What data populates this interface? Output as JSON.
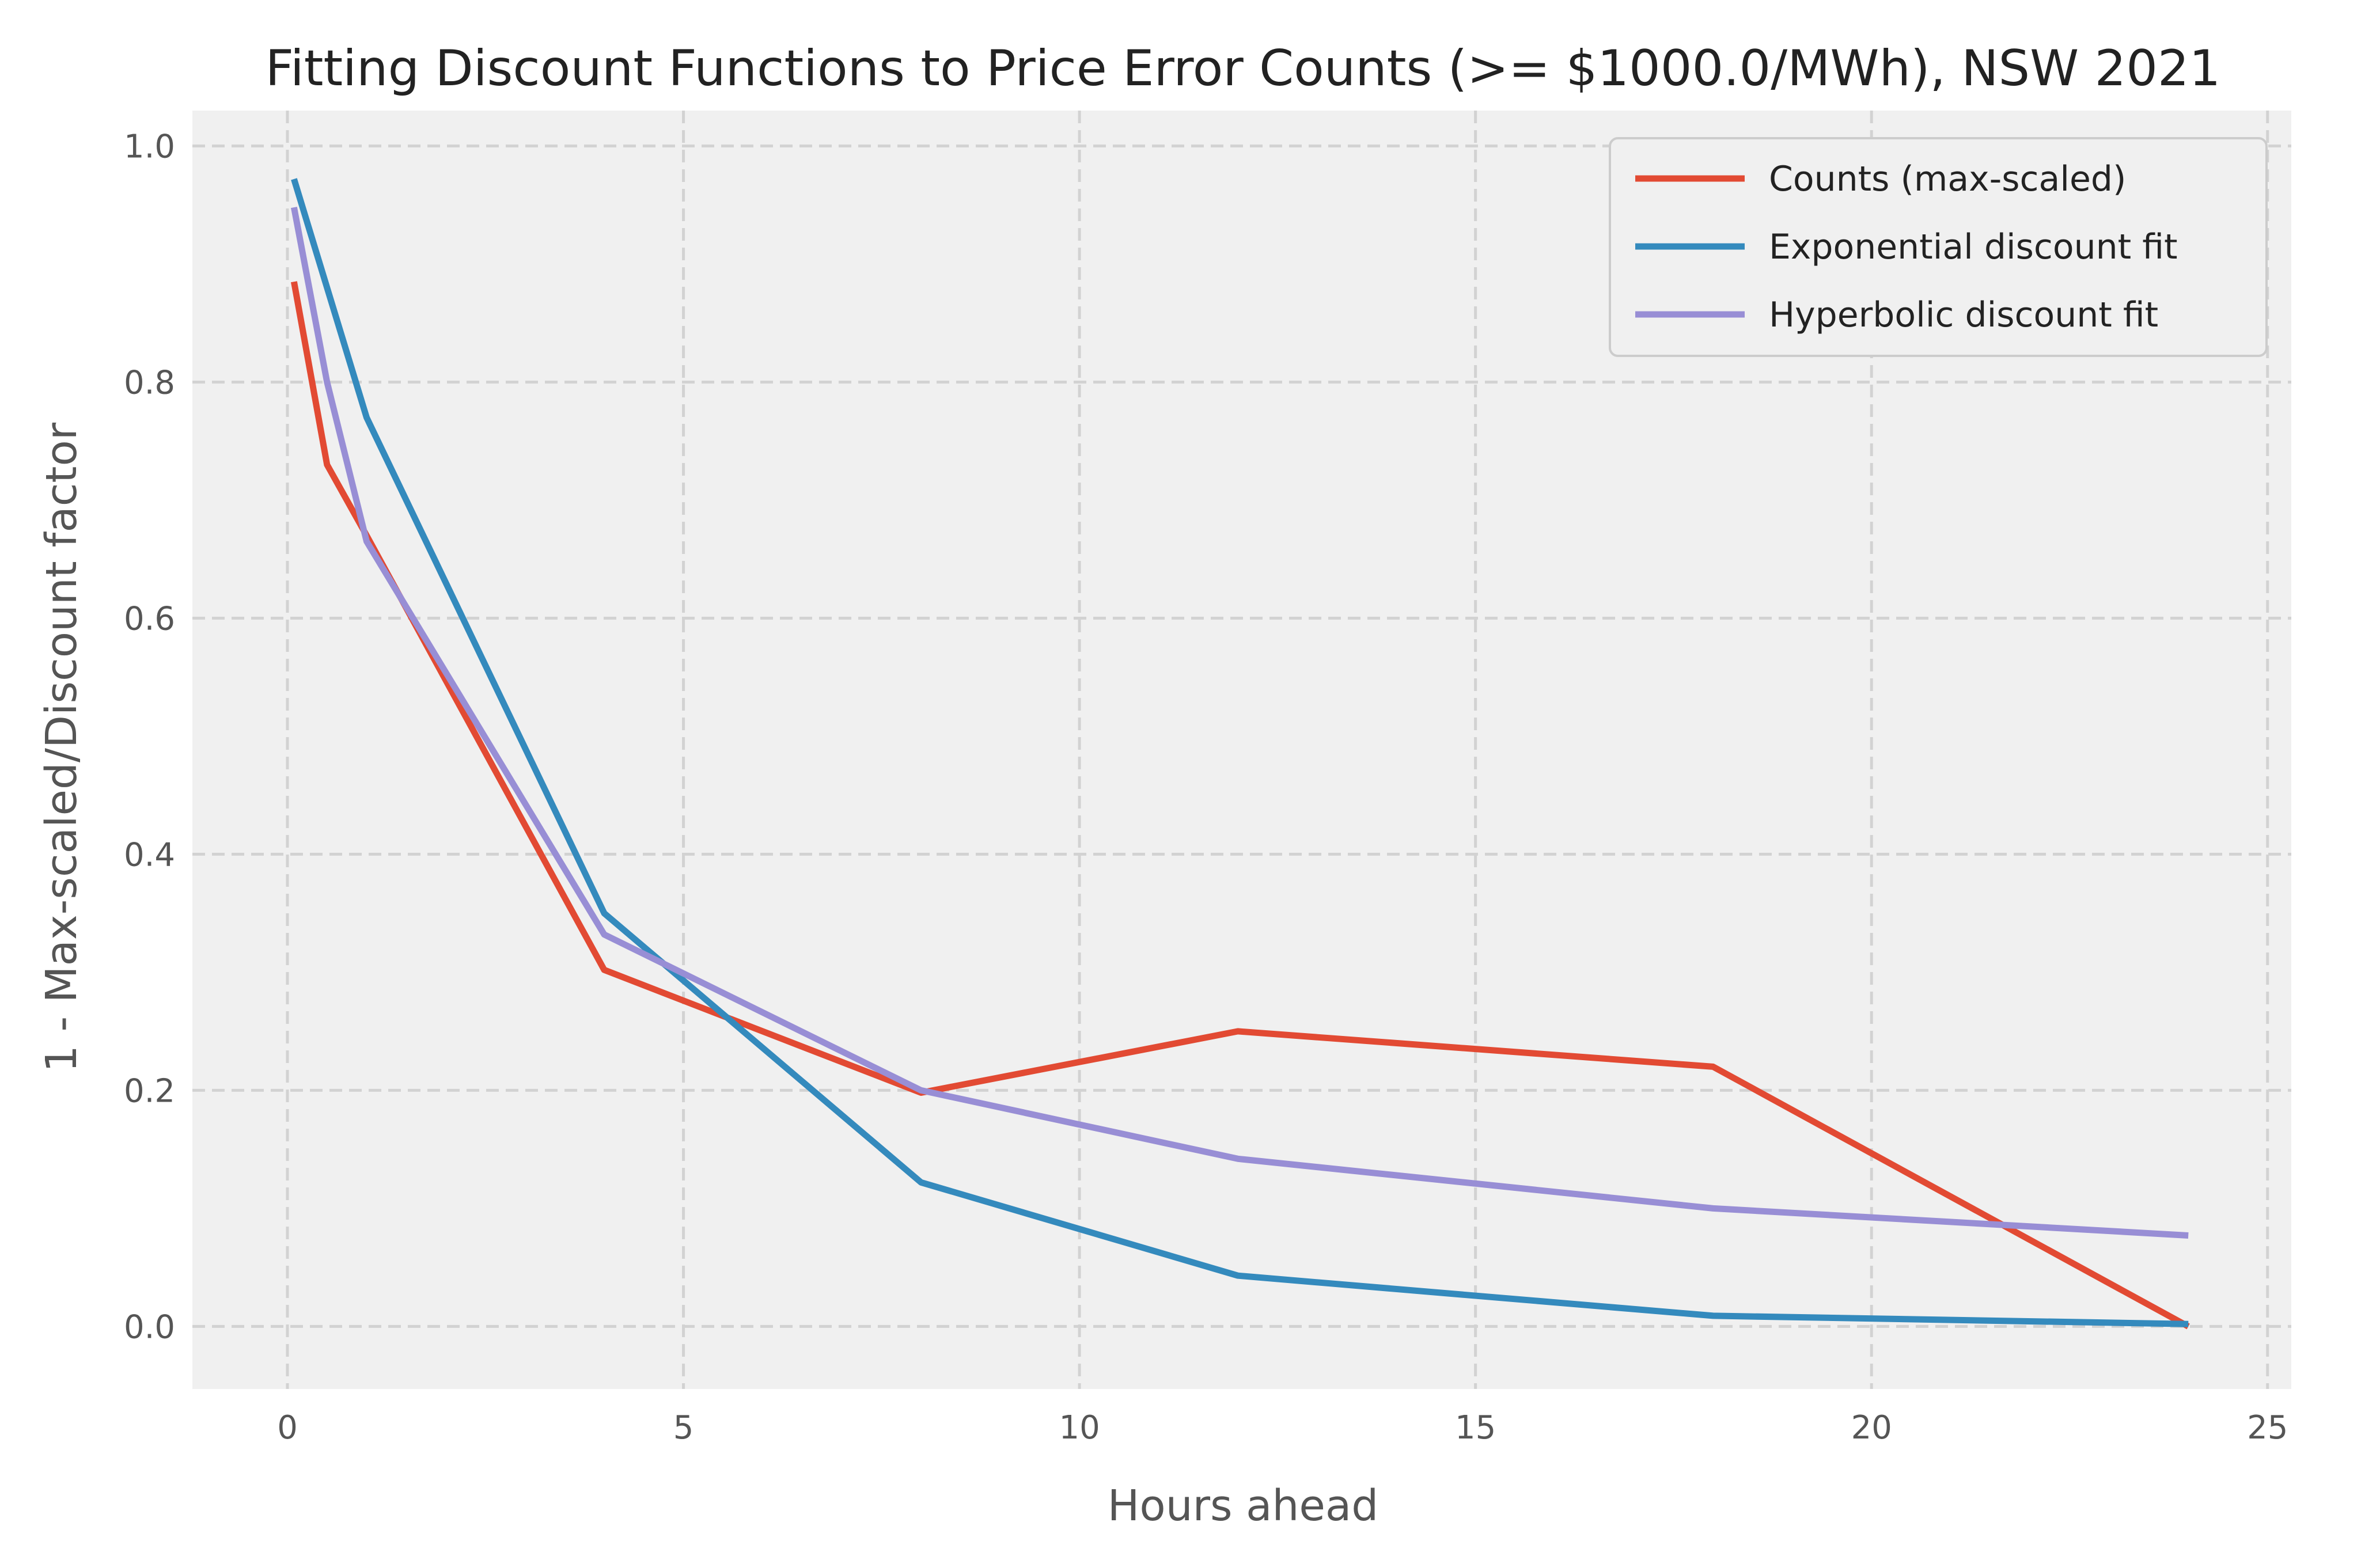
{
  "chart_data": {
    "type": "line",
    "title": "Fitting Discount Functions to Price Error Counts (>= $1000.0/MWh), NSW 2021",
    "xlabel": "Hours ahead",
    "ylabel": "1 - Max-scaled/Discount factor",
    "xlim": [
      -1.2,
      25.3
    ],
    "ylim": [
      -0.053,
      1.03
    ],
    "xticks": [
      0,
      5,
      10,
      15,
      20,
      25
    ],
    "xtick_labels": [
      "0",
      "5",
      "10",
      "15",
      "20",
      "25"
    ],
    "yticks": [
      0.0,
      0.2,
      0.4,
      0.6,
      0.8,
      1.0
    ],
    "ytick_labels": [
      "0.0",
      "0.2",
      "0.4",
      "0.6",
      "0.8",
      "1.0"
    ],
    "grid": true,
    "legend_position": "top-right",
    "series": [
      {
        "name": "Counts (max-scaled)",
        "color": "#E24A33",
        "x": [
          0.083,
          0.5,
          1,
          4,
          8,
          12,
          18,
          24
        ],
        "y": [
          0.885,
          0.73,
          0.67,
          0.302,
          0.198,
          0.25,
          0.22,
          0.0
        ]
      },
      {
        "name": "Exponential discount fit",
        "color": "#348ABD",
        "x": [
          0.083,
          0.5,
          1,
          4,
          8,
          12,
          18,
          24
        ],
        "y": [
          0.972,
          0.88,
          0.77,
          0.35,
          0.122,
          0.043,
          0.009,
          0.002
        ]
      },
      {
        "name": "Hyperbolic discount fit",
        "color": "#988ED5",
        "x": [
          0.083,
          0.5,
          1,
          4,
          8,
          12,
          18,
          24
        ],
        "y": [
          0.948,
          0.8,
          0.665,
          0.332,
          0.2,
          0.142,
          0.1,
          0.077
        ]
      }
    ]
  }
}
